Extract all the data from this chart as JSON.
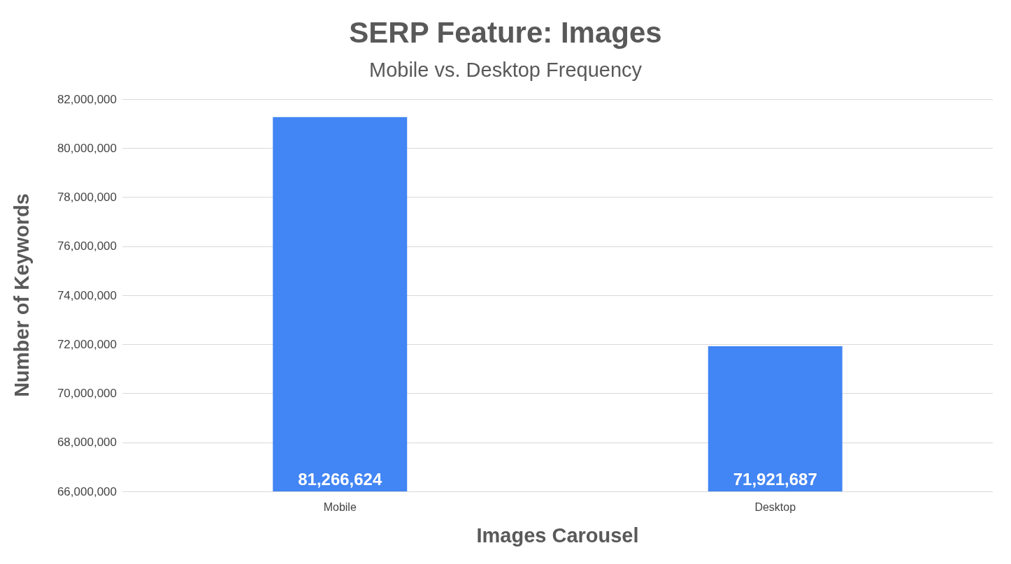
{
  "chart_data": {
    "type": "bar",
    "title": "SERP Feature: Images",
    "subtitle": "Mobile vs. Desktop Frequency",
    "xlabel": "Images Carousel",
    "ylabel": "Number of Keywords",
    "categories": [
      "Mobile",
      "Desktop"
    ],
    "values": [
      81266624,
      71921687
    ],
    "value_labels": [
      "81,266,624",
      "71,921,687"
    ],
    "color": "#4285f4",
    "ylim": [
      66000000,
      82000000
    ],
    "yticks": [
      {
        "value": 66000000,
        "label": "66,000,000"
      },
      {
        "value": 68000000,
        "label": "68,000,000"
      },
      {
        "value": 70000000,
        "label": "70,000,000"
      },
      {
        "value": 72000000,
        "label": "72,000,000"
      },
      {
        "value": 74000000,
        "label": "74,000,000"
      },
      {
        "value": 76000000,
        "label": "76,000,000"
      },
      {
        "value": 78000000,
        "label": "78,000,000"
      },
      {
        "value": 80000000,
        "label": "80,000,000"
      },
      {
        "value": 82000000,
        "label": "82,000,000"
      }
    ],
    "grid": "y"
  }
}
